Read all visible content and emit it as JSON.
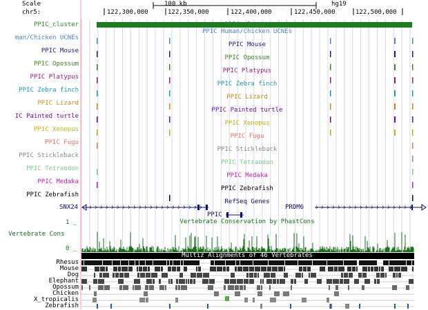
{
  "ruler": {
    "scale_label": "Scale",
    "chrom_label": "chr5:",
    "scale_bar_text": "100 kb",
    "assembly": "hg19",
    "positions": [
      "122,300,000",
      "122,350,000",
      "122,400,000",
      "122,450,000",
      "122,500,000"
    ]
  },
  "tracks": [
    {
      "left_label": "PPIC_cluster",
      "center_label": "PPIC_cluster",
      "color": "#2e8b2e"
    },
    {
      "left_label": "man/Chicken UCNEs",
      "center_label": "PPIC Human/Chicken UCNEs",
      "color": "#4a86c8"
    },
    {
      "left_label": "PPIC Mouse",
      "center_label": "PPIC Mouse",
      "color": "#1a1a8c"
    },
    {
      "left_label": "PPIC Opossum",
      "center_label": "PPIC Opossum",
      "color": "#3a8c1a"
    },
    {
      "left_label": "PPIC Platypus",
      "center_label": "PPIC Platypus",
      "color": "#9c1a7a"
    },
    {
      "left_label": "PPIC Zebra finch",
      "center_label": "PPIC Zebra finch",
      "color": "#1a9ca8"
    },
    {
      "left_label": "PPIC Lizard",
      "center_label": "PPIC Lizard",
      "color": "#d4880a"
    },
    {
      "left_label": "IC Painted turtle",
      "center_label": "PPIC Painted turtle",
      "color": "#6a0aa8"
    },
    {
      "left_label": "PPIC Xenopus",
      "center_label": "PPIC Xenopus",
      "color": "#c8b00a"
    },
    {
      "left_label": "PPIC Fugu",
      "center_label": "PPIC Fugu",
      "color": "#e8705a"
    },
    {
      "left_label": "PPIC Stickleback",
      "center_label": "PPIC Stickleback",
      "color": "#8a8a8a"
    },
    {
      "left_label": "PPIC Tetraodon",
      "center_label": "PPIC Tetraodon",
      "color": "#7ad07a"
    },
    {
      "left_label": "PPIC Medaka",
      "center_label": "PPIC Medaka",
      "color": "#c81ab0"
    },
    {
      "left_label": "PPIC Zebrafish",
      "center_label": "PPIC Zebrafish",
      "color": "#000000"
    }
  ],
  "refseq": {
    "title": "RefSeq Genes",
    "genes": [
      "SNX24",
      "PRDM6",
      "PPIC"
    ],
    "color": "#0c0c78"
  },
  "conservation": {
    "title": "Vertebrate Conservation by PhastCons",
    "left_label": "Vertebrate Cons",
    "top_value": "1 _",
    "bottom_value": "0 _",
    "color": "#1a6e1a"
  },
  "multiz": {
    "title": "Multiz Alignments of 46 Vertebrates",
    "species": [
      "Rhesus",
      "Mouse",
      "Dog",
      "Elephant",
      "Opossum",
      "Chicken",
      "X_tropicalis",
      "Zebrafish"
    ]
  }
}
